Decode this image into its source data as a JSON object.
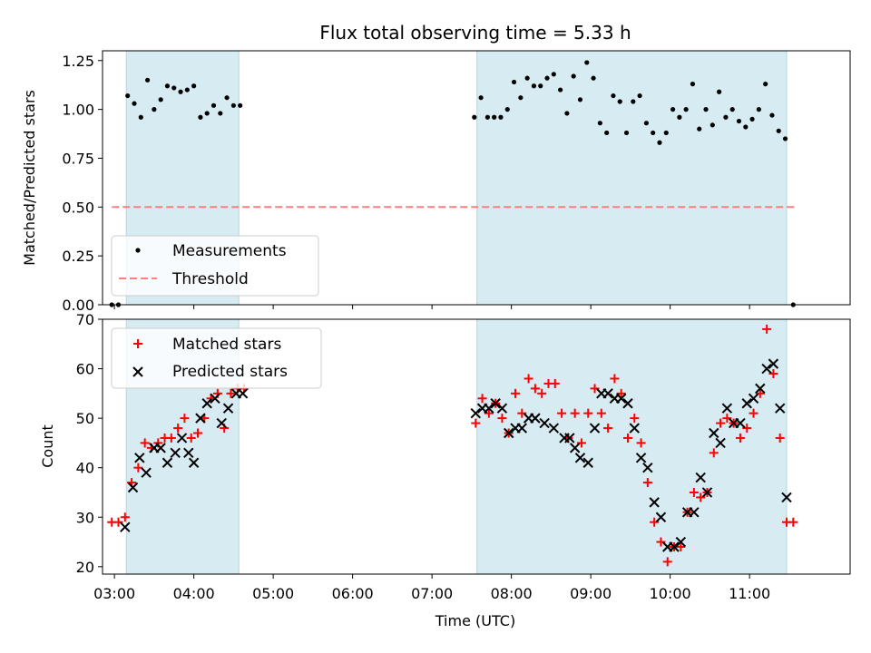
{
  "chart_data": [
    {
      "type": "scatter",
      "title": "Flux total observing time = 5.33 h",
      "ylabel": "Matched/Predicted stars",
      "ylim": [
        0,
        1.3
      ],
      "xlim": [
        "02:51",
        "12:16"
      ],
      "yticks": [
        "0.00",
        "0.25",
        "0.50",
        "0.75",
        "1.00",
        "1.25"
      ],
      "observing_windows": [
        [
          "03:09",
          "04:34"
        ],
        [
          "07:34",
          "11:28"
        ]
      ],
      "window_color": "#add8e6",
      "threshold": {
        "name": "Threshold",
        "value": 0.5,
        "x_range": [
          "02:58",
          "11:35"
        ],
        "color": "#ff7f7f"
      },
      "legend": {
        "location": "lower-left",
        "entries": [
          "Measurements",
          "Threshold"
        ]
      },
      "series": [
        {
          "name": "Measurements",
          "color": "#000000",
          "marker": "dot",
          "points": [
            [
              "02:58",
              0
            ],
            [
              "03:03",
              0
            ],
            [
              "03:10",
              1.07
            ],
            [
              "03:15",
              1.03
            ],
            [
              "03:20",
              0.96
            ],
            [
              "03:25",
              1.15
            ],
            [
              "03:30",
              1.0
            ],
            [
              "03:35",
              1.05
            ],
            [
              "03:40",
              1.12
            ],
            [
              "03:45",
              1.11
            ],
            [
              "03:50",
              1.09
            ],
            [
              "03:55",
              1.1
            ],
            [
              "04:00",
              1.12
            ],
            [
              "04:05",
              0.96
            ],
            [
              "04:10",
              0.98
            ],
            [
              "04:15",
              1.02
            ],
            [
              "04:20",
              0.98
            ],
            [
              "04:25",
              1.06
            ],
            [
              "04:30",
              1.02
            ],
            [
              "04:35",
              1.02
            ],
            [
              "07:32",
              0.96
            ],
            [
              "07:37",
              1.06
            ],
            [
              "07:42",
              0.96
            ],
            [
              "07:47",
              0.96
            ],
            [
              "07:52",
              0.96
            ],
            [
              "07:57",
              1.0
            ],
            [
              "08:02",
              1.14
            ],
            [
              "08:07",
              1.06
            ],
            [
              "08:12",
              1.16
            ],
            [
              "08:17",
              1.12
            ],
            [
              "08:22",
              1.12
            ],
            [
              "08:27",
              1.16
            ],
            [
              "08:32",
              1.18
            ],
            [
              "08:37",
              1.1
            ],
            [
              "08:42",
              0.98
            ],
            [
              "08:47",
              1.17
            ],
            [
              "08:52",
              1.05
            ],
            [
              "08:57",
              1.24
            ],
            [
              "09:02",
              1.16
            ],
            [
              "09:07",
              0.93
            ],
            [
              "09:12",
              0.88
            ],
            [
              "09:17",
              1.07
            ],
            [
              "09:22",
              1.04
            ],
            [
              "09:27",
              0.88
            ],
            [
              "09:32",
              1.04
            ],
            [
              "09:37",
              1.07
            ],
            [
              "09:42",
              0.93
            ],
            [
              "09:47",
              0.88
            ],
            [
              "09:52",
              0.83
            ],
            [
              "09:57",
              0.88
            ],
            [
              "10:02",
              1.0
            ],
            [
              "10:07",
              0.96
            ],
            [
              "10:12",
              1.0
            ],
            [
              "10:17",
              1.13
            ],
            [
              "10:22",
              0.9
            ],
            [
              "10:27",
              1.0
            ],
            [
              "10:32",
              0.92
            ],
            [
              "10:37",
              1.09
            ],
            [
              "10:42",
              0.96
            ],
            [
              "10:47",
              1.0
            ],
            [
              "10:52",
              0.94
            ],
            [
              "10:57",
              0.91
            ],
            [
              "11:02",
              0.95
            ],
            [
              "11:07",
              1.0
            ],
            [
              "11:12",
              1.13
            ],
            [
              "11:17",
              0.97
            ],
            [
              "11:22",
              0.89
            ],
            [
              "11:27",
              0.85
            ],
            [
              "11:33",
              0
            ]
          ]
        }
      ]
    },
    {
      "type": "scatter",
      "xlabel": "Time (UTC)",
      "ylabel": "Count",
      "ylim": [
        18.5,
        70
      ],
      "xlim": [
        "02:51",
        "12:16"
      ],
      "yticks": [
        "20",
        "30",
        "40",
        "50",
        "60",
        "70"
      ],
      "xticks": [
        "03:00",
        "04:00",
        "05:00",
        "06:00",
        "07:00",
        "08:00",
        "09:00",
        "10:00",
        "11:00"
      ],
      "observing_windows": [
        [
          "03:09",
          "04:34"
        ],
        [
          "07:34",
          "11:28"
        ]
      ],
      "window_color": "#add8e6",
      "legend": {
        "location": "top-left",
        "entries": [
          "Matched stars",
          "Predicted stars"
        ]
      },
      "series": [
        {
          "name": "Matched stars",
          "color": "#ff0000",
          "marker": "plus",
          "points": [
            [
              "02:58",
              29
            ],
            [
              "03:03",
              29
            ],
            [
              "03:08",
              30
            ],
            [
              "03:13",
              37
            ],
            [
              "03:18",
              40
            ],
            [
              "03:23",
              45
            ],
            [
              "03:28",
              44
            ],
            [
              "03:33",
              45
            ],
            [
              "03:38",
              46
            ],
            [
              "03:43",
              46
            ],
            [
              "03:48",
              48
            ],
            [
              "03:53",
              50
            ],
            [
              "03:58",
              46
            ],
            [
              "04:03",
              47
            ],
            [
              "04:08",
              50
            ],
            [
              "04:13",
              54
            ],
            [
              "04:18",
              55
            ],
            [
              "04:23",
              48
            ],
            [
              "04:28",
              55
            ],
            [
              "04:33",
              56
            ],
            [
              "04:38",
              56
            ],
            [
              "07:33",
              49
            ],
            [
              "07:38",
              54
            ],
            [
              "07:43",
              51
            ],
            [
              "07:48",
              53
            ],
            [
              "07:53",
              50
            ],
            [
              "07:58",
              47
            ],
            [
              "08:03",
              55
            ],
            [
              "08:08",
              51
            ],
            [
              "08:13",
              58
            ],
            [
              "08:18",
              56
            ],
            [
              "08:23",
              55
            ],
            [
              "08:28",
              57
            ],
            [
              "08:33",
              57
            ],
            [
              "08:38",
              51
            ],
            [
              "08:43",
              46
            ],
            [
              "08:48",
              51
            ],
            [
              "08:53",
              45
            ],
            [
              "08:58",
              51
            ],
            [
              "09:03",
              56
            ],
            [
              "09:08",
              51
            ],
            [
              "09:13",
              48
            ],
            [
              "09:18",
              58
            ],
            [
              "09:23",
              55
            ],
            [
              "09:28",
              46
            ],
            [
              "09:33",
              50
            ],
            [
              "09:38",
              45
            ],
            [
              "09:43",
              37
            ],
            [
              "09:48",
              29
            ],
            [
              "09:53",
              25
            ],
            [
              "09:58",
              21
            ],
            [
              "10:03",
              24
            ],
            [
              "10:08",
              24
            ],
            [
              "10:13",
              31
            ],
            [
              "10:18",
              35
            ],
            [
              "10:23",
              34
            ],
            [
              "10:28",
              35
            ],
            [
              "10:33",
              43
            ],
            [
              "10:38",
              49
            ],
            [
              "10:43",
              50
            ],
            [
              "10:48",
              49
            ],
            [
              "10:53",
              46
            ],
            [
              "10:58",
              48
            ],
            [
              "11:03",
              51
            ],
            [
              "11:08",
              55
            ],
            [
              "11:13",
              68
            ],
            [
              "11:18",
              59
            ],
            [
              "11:23",
              46
            ],
            [
              "11:28",
              29
            ],
            [
              "11:33",
              29
            ]
          ]
        },
        {
          "name": "Predicted stars",
          "color": "#000000",
          "marker": "x",
          "points": [
            [
              "03:08",
              28
            ],
            [
              "03:14",
              36
            ],
            [
              "03:19",
              42
            ],
            [
              "03:24",
              39
            ],
            [
              "03:30",
              44
            ],
            [
              "03:35",
              44
            ],
            [
              "03:40",
              41
            ],
            [
              "03:46",
              43
            ],
            [
              "03:51",
              46
            ],
            [
              "03:56",
              43
            ],
            [
              "04:00",
              41
            ],
            [
              "04:05",
              50
            ],
            [
              "04:10",
              53
            ],
            [
              "04:16",
              54
            ],
            [
              "04:21",
              49
            ],
            [
              "04:26",
              52
            ],
            [
              "04:32",
              55
            ],
            [
              "04:37",
              55
            ],
            [
              "07:33",
              51
            ],
            [
              "07:38",
              52
            ],
            [
              "07:43",
              52
            ],
            [
              "07:48",
              53
            ],
            [
              "07:53",
              52
            ],
            [
              "07:58",
              47
            ],
            [
              "08:03",
              48
            ],
            [
              "08:08",
              48
            ],
            [
              "08:13",
              50
            ],
            [
              "08:18",
              50
            ],
            [
              "08:25",
              49
            ],
            [
              "08:32",
              48
            ],
            [
              "08:40",
              46
            ],
            [
              "08:44",
              46
            ],
            [
              "08:48",
              44
            ],
            [
              "08:52",
              42
            ],
            [
              "08:58",
              41
            ],
            [
              "09:03",
              48
            ],
            [
              "09:08",
              55
            ],
            [
              "09:13",
              55
            ],
            [
              "09:18",
              54
            ],
            [
              "09:23",
              54
            ],
            [
              "09:28",
              53
            ],
            [
              "09:33",
              48
            ],
            [
              "09:38",
              42
            ],
            [
              "09:43",
              40
            ],
            [
              "09:48",
              33
            ],
            [
              "09:53",
              30
            ],
            [
              "09:58",
              24
            ],
            [
              "10:03",
              24
            ],
            [
              "10:08",
              25
            ],
            [
              "10:13",
              31
            ],
            [
              "10:18",
              31
            ],
            [
              "10:23",
              38
            ],
            [
              "10:28",
              35
            ],
            [
              "10:33",
              47
            ],
            [
              "10:38",
              45
            ],
            [
              "10:43",
              52
            ],
            [
              "10:48",
              49
            ],
            [
              "10:53",
              49
            ],
            [
              "10:58",
              53
            ],
            [
              "11:03",
              54
            ],
            [
              "11:08",
              56
            ],
            [
              "11:13",
              60
            ],
            [
              "11:18",
              61
            ],
            [
              "11:23",
              52
            ],
            [
              "11:28",
              34
            ]
          ]
        }
      ]
    }
  ]
}
